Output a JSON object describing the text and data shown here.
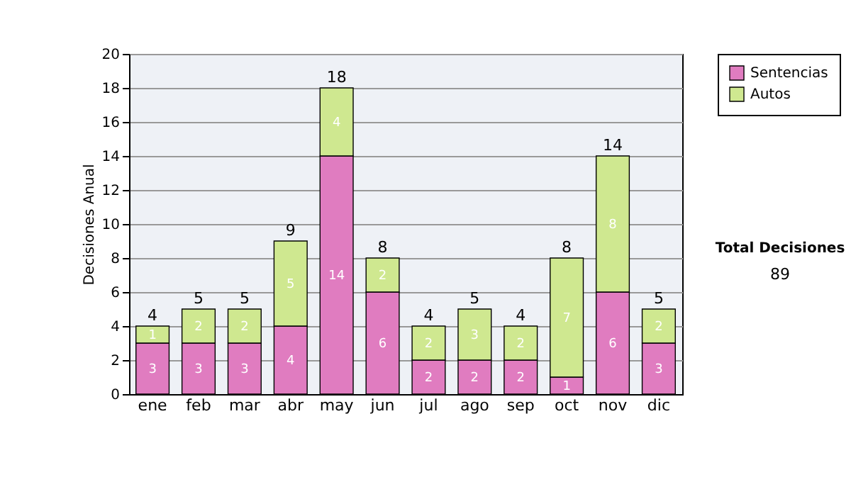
{
  "chart_data": {
    "type": "bar",
    "stacked": true,
    "ylabel": "Decisiones Anual",
    "categories": [
      "ene",
      "feb",
      "mar",
      "abr",
      "may",
      "jun",
      "jul",
      "ago",
      "sep",
      "oct",
      "nov",
      "dic"
    ],
    "series": [
      {
        "name": "Sentencias",
        "color": "#e07cc0",
        "values": [
          3,
          3,
          3,
          4,
          14,
          6,
          2,
          2,
          2,
          1,
          6,
          3
        ]
      },
      {
        "name": "Autos",
        "color": "#cfe890",
        "values": [
          1,
          2,
          2,
          5,
          4,
          2,
          2,
          3,
          2,
          7,
          8,
          2
        ]
      }
    ],
    "ylim": [
      0,
      20
    ],
    "yticks": [
      0,
      2,
      4,
      6,
      8,
      10,
      12,
      14,
      16,
      18,
      20
    ],
    "grid": "y",
    "legend": "right",
    "data_labels": true,
    "totals": [
      "4",
      "5",
      "5",
      "9",
      "18",
      "8",
      "4",
      "5",
      "4",
      "8",
      "14",
      "5"
    ],
    "annotations": [
      "Total Decisiones",
      "89"
    ]
  }
}
